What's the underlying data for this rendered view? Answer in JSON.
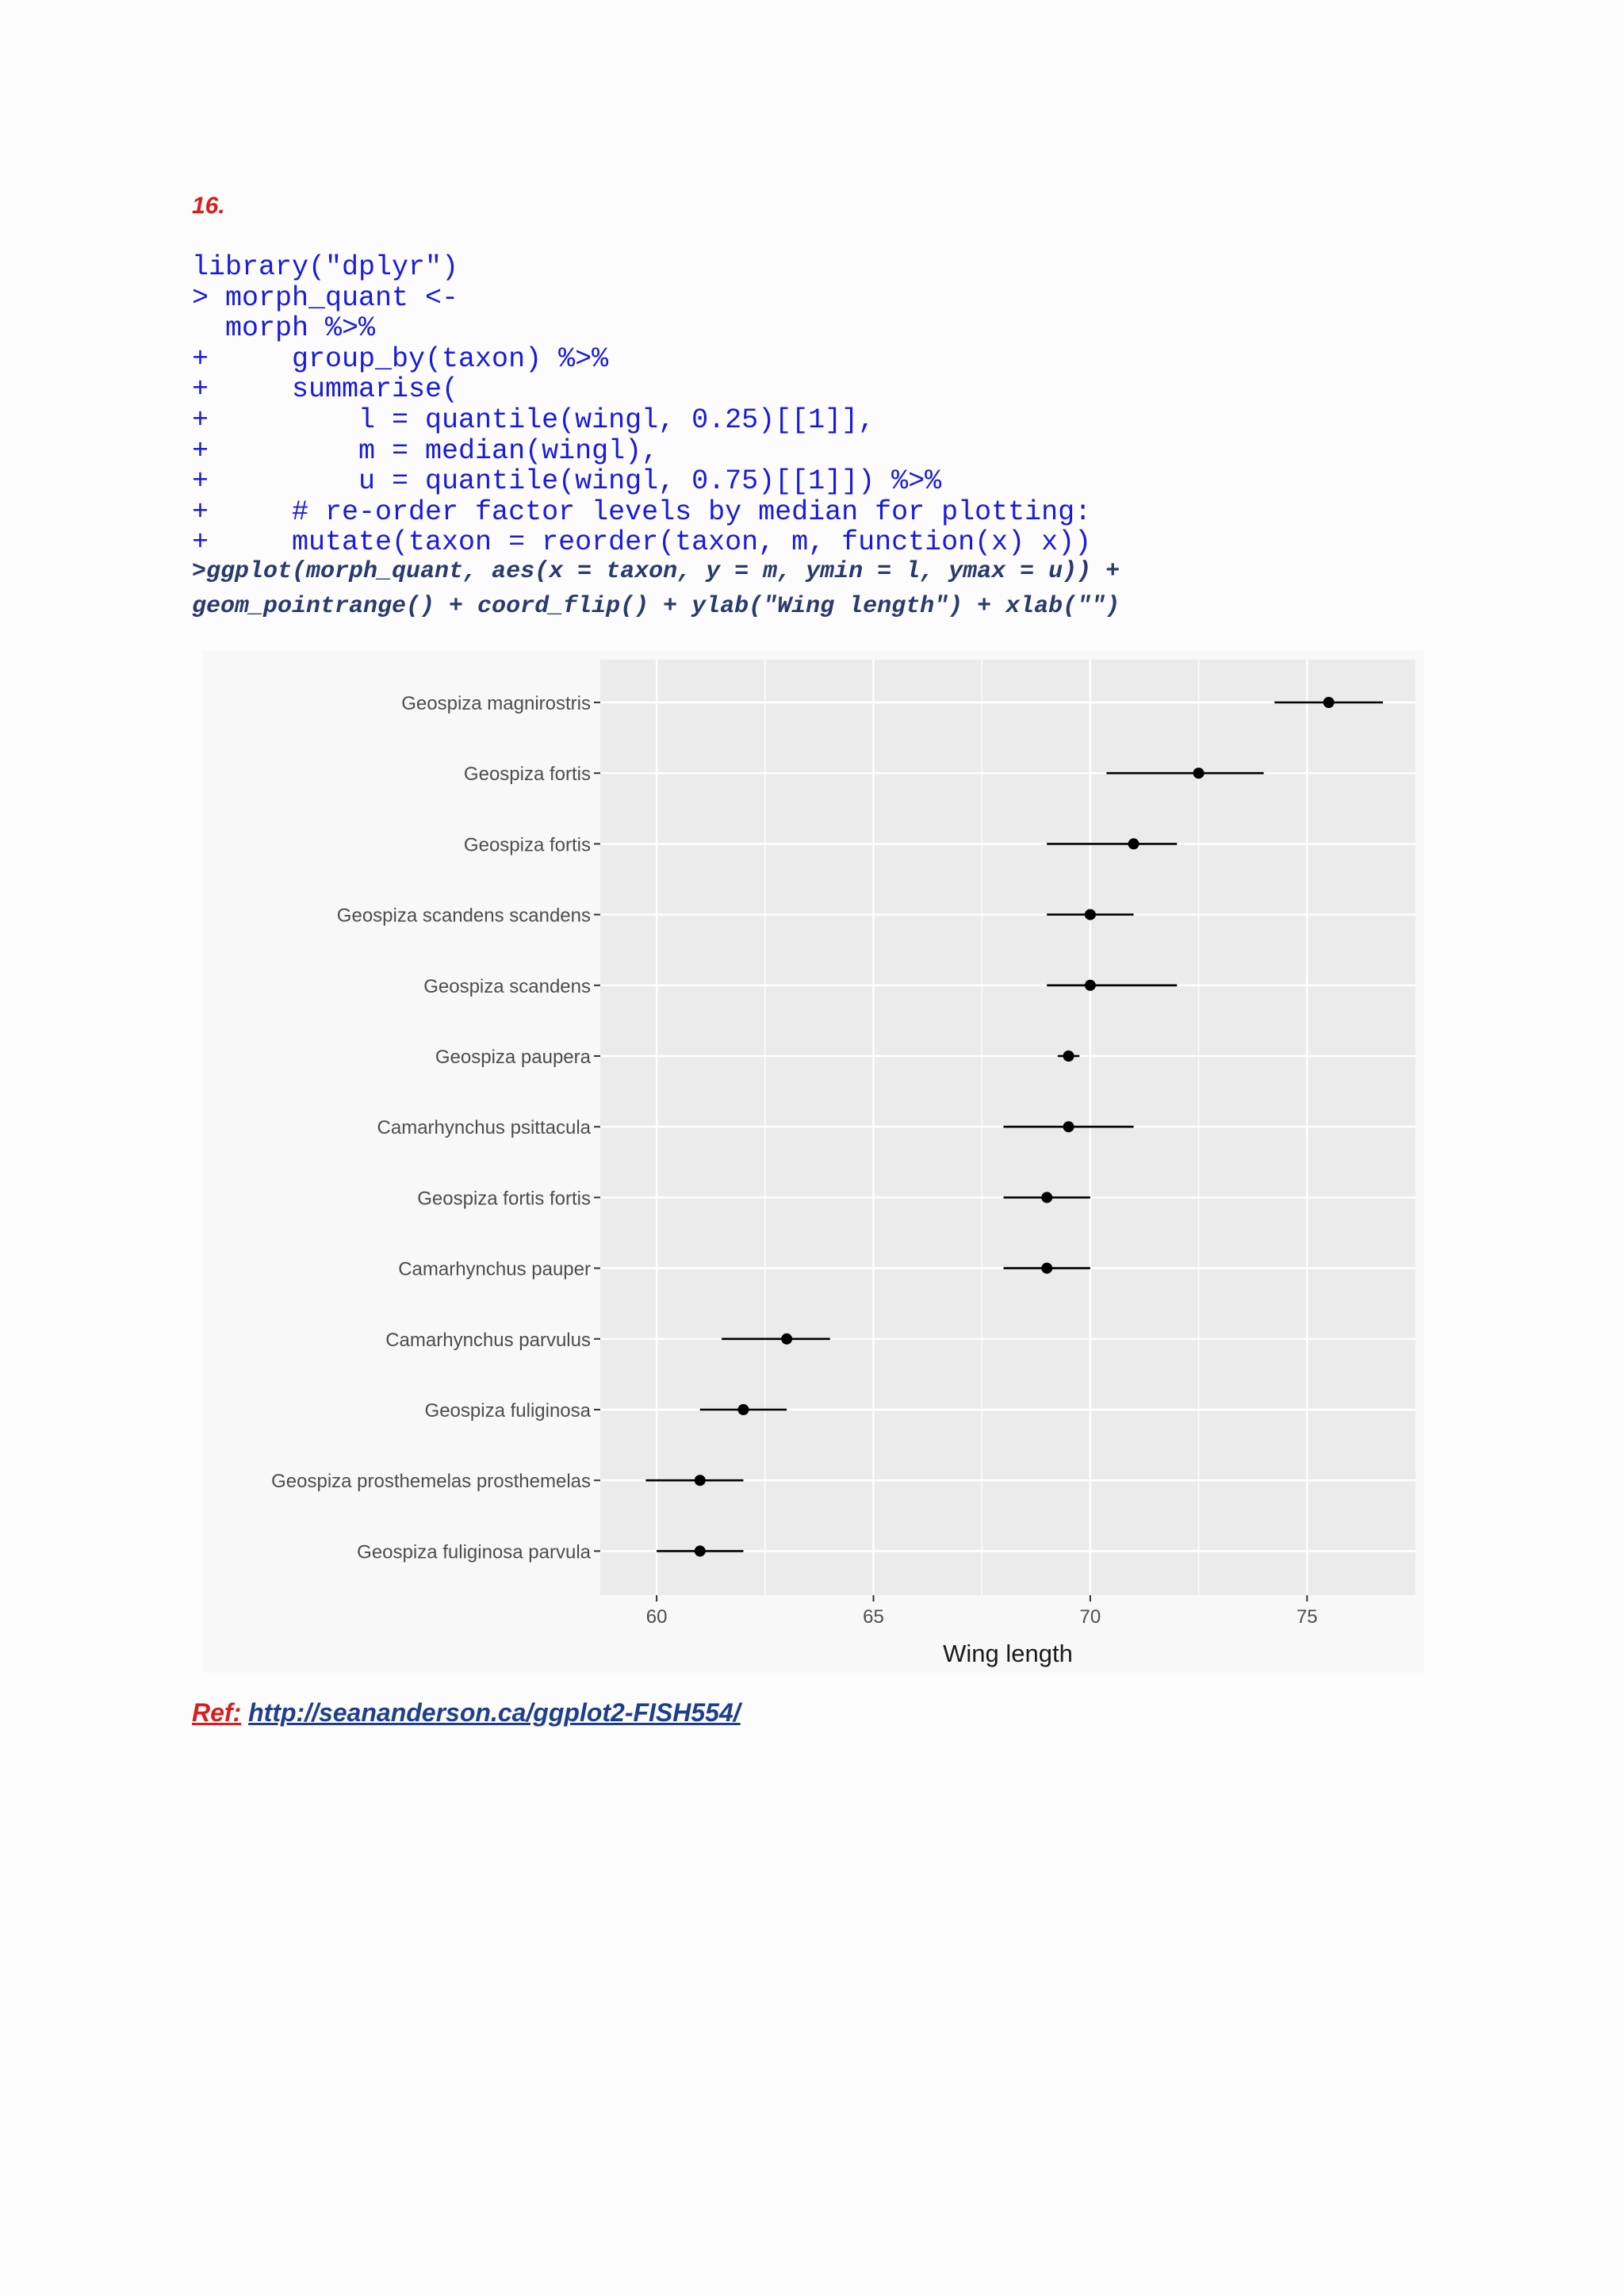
{
  "section": {
    "number": "16."
  },
  "code": {
    "lines": [
      "library(\"dplyr\")",
      "> morph_quant <-",
      "  morph %>%",
      "+     group_by(taxon) %>%",
      "+     summarise(",
      "+         l = quantile(wingl, 0.25)[[1]],",
      "+         m = median(wingl),",
      "+         u = quantile(wingl, 0.75)[[1]]) %>%",
      "+     # re-order factor levels by median for plotting:",
      "+     mutate(taxon = reorder(taxon, m, function(x) x))"
    ],
    "ggplot_line_1": ">ggplot(morph_quant, aes(x = taxon, y = m, ymin = l, ymax = u)) +",
    "ggplot_line_2": "geom_pointrange() + coord_flip() + ylab(\"Wing length\") + xlab(\"\")"
  },
  "chart_data": {
    "type": "pointrange",
    "orientation": "horizontal",
    "xlabel": "Wing length",
    "ylabel": "",
    "xlim": [
      58.7,
      77.5
    ],
    "xticks": [
      60,
      65,
      70,
      75
    ],
    "xtick_labels": [
      "60",
      "65",
      "70",
      "75"
    ],
    "grid": true,
    "categories": [
      "Geospiza magnirostris",
      "Geospiza fortis",
      "Geospiza fortis",
      "Geospiza scandens scandens",
      "Geospiza scandens",
      "Geospiza paupera",
      "Camarhynchus psittacula",
      "Geospiza fortis fortis",
      "Camarhynchus pauper",
      "Camarhynchus parvulus",
      "Geospiza fuliginosa",
      "Geospiza prosthemelas prosthemelas",
      "Geospiza fuliginosa parvula"
    ],
    "series": [
      {
        "median": [
          75.5,
          72.5,
          71.0,
          70.0,
          70.0,
          69.5,
          69.5,
          69.0,
          69.0,
          63.0,
          62.0,
          61.0,
          61.0
        ],
        "lower": [
          74.25,
          70.375,
          69.0,
          69.0,
          69.0,
          69.25,
          68.0,
          68.0,
          68.0,
          61.5,
          61.0,
          59.75,
          60.0
        ],
        "upper": [
          76.75,
          74.0,
          72.0,
          71.0,
          72.0,
          69.75,
          71.0,
          70.0,
          70.0,
          64.0,
          63.0,
          62.0,
          62.0
        ]
      }
    ],
    "colors": {
      "panel": "#ebebeb",
      "grid": "#ffffff",
      "point": "#000000",
      "text": "#4d4d4d",
      "axis_title": "#1a1a1a"
    }
  },
  "ref": {
    "label": "Ref:",
    "url_text": "http://seananderson.ca/ggplot2-FISH554/"
  }
}
